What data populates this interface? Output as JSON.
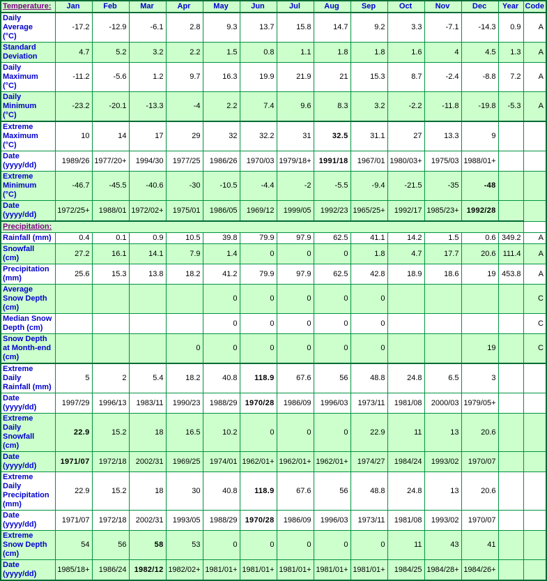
{
  "colors": {
    "cell_green": "#CCFFCC",
    "border_green": "#00913F",
    "border_dark_green": "#006B35",
    "label_blue": "#0000CC",
    "section_purple": "#800080",
    "value_black": "#000000"
  },
  "table": {
    "header": {
      "label": "Temperature:",
      "months": [
        "Jan",
        "Feb",
        "Mar",
        "Apr",
        "May",
        "Jun",
        "Jul",
        "Aug",
        "Sep",
        "Oct",
        "Nov",
        "Dec"
      ],
      "year": "Year",
      "code": "Code"
    },
    "rows": [
      {
        "kind": "data",
        "label": "Daily Average\n(°C)",
        "shade": false,
        "thick_top": false,
        "bold": [],
        "values": [
          "-17.2",
          "-12.9",
          "-6.1",
          "2.8",
          "9.3",
          "13.7",
          "15.8",
          "14.7",
          "9.2",
          "3.3",
          "-7.1",
          "-14.3"
        ],
        "year": "0.9",
        "code": "A"
      },
      {
        "kind": "data",
        "label": "Standard\nDeviation",
        "shade": true,
        "thick_top": false,
        "bold": [],
        "values": [
          "4.7",
          "5.2",
          "3.2",
          "2.2",
          "1.5",
          "0.8",
          "1.1",
          "1.8",
          "1.8",
          "1.6",
          "4",
          "4.5"
        ],
        "year": "1.3",
        "code": "A"
      },
      {
        "kind": "data",
        "label": "Daily\nMaximum\n(°C)",
        "shade": false,
        "thick_top": false,
        "bold": [],
        "values": [
          "-11.2",
          "-5.6",
          "1.2",
          "9.7",
          "16.3",
          "19.9",
          "21.9",
          "21",
          "15.3",
          "8.7",
          "-2.4",
          "-8.8"
        ],
        "year": "7.2",
        "code": "A"
      },
      {
        "kind": "data",
        "label": "Daily\nMinimum\n(°C)",
        "shade": true,
        "thick_top": false,
        "bold": [],
        "values": [
          "-23.2",
          "-20.1",
          "-13.3",
          "-4",
          "2.2",
          "7.4",
          "9.6",
          "8.3",
          "3.2",
          "-2.2",
          "-11.8",
          "-19.8"
        ],
        "year": "-5.3",
        "code": "A"
      },
      {
        "kind": "data",
        "label": "Extreme\nMaximum\n(°C)",
        "shade": false,
        "thick_top": true,
        "bold": [
          7
        ],
        "values": [
          "10",
          "14",
          "17",
          "29",
          "32",
          "32.2",
          "31",
          "32.5",
          "31.1",
          "27",
          "13.3",
          "9"
        ],
        "year": "",
        "code": ""
      },
      {
        "kind": "data",
        "label": "Date\n(yyyy/dd)",
        "shade": false,
        "thick_top": false,
        "bold": [
          7
        ],
        "values": [
          "1989/26",
          "1977/20+",
          "1994/30",
          "1977/25",
          "1986/26",
          "1970/03",
          "1979/18+",
          "1991/18",
          "1967/01",
          "1980/03+",
          "1975/03",
          "1988/01+"
        ],
        "year": "",
        "code": ""
      },
      {
        "kind": "data",
        "label": "Extreme\nMinimum\n(°C)",
        "shade": true,
        "thick_top": false,
        "bold": [
          11
        ],
        "values": [
          "-46.7",
          "-45.5",
          "-40.6",
          "-30",
          "-10.5",
          "-4.4",
          "-2",
          "-5.5",
          "-9.4",
          "-21.5",
          "-35",
          "-48"
        ],
        "year": "",
        "code": ""
      },
      {
        "kind": "data",
        "label": "Date\n(yyyy/dd)",
        "shade": true,
        "thick_top": false,
        "bold": [
          11
        ],
        "values": [
          "1972/25+",
          "1988/01",
          "1972/02+",
          "1975/01",
          "1986/05",
          "1969/12",
          "1999/05",
          "1992/23",
          "1965/25+",
          "1992/17",
          "1985/23+",
          "1992/28"
        ],
        "year": "",
        "code": ""
      },
      {
        "kind": "section",
        "label": "Precipitation:",
        "shade": true,
        "thick_top": true
      },
      {
        "kind": "data",
        "label": "Rainfall (mm)",
        "shade": false,
        "thick_top": false,
        "bold": [],
        "values": [
          "0.4",
          "0.1",
          "0.9",
          "10.5",
          "39.8",
          "79.9",
          "97.9",
          "62.5",
          "41.1",
          "14.2",
          "1.5",
          "0.6"
        ],
        "year": "349.2",
        "code": "A"
      },
      {
        "kind": "data",
        "label": "Snowfall\n(cm)",
        "shade": true,
        "thick_top": false,
        "bold": [],
        "values": [
          "27.2",
          "16.1",
          "14.1",
          "7.9",
          "1.4",
          "0",
          "0",
          "0",
          "1.8",
          "4.7",
          "17.7",
          "20.6"
        ],
        "year": "111.4",
        "code": "A"
      },
      {
        "kind": "data",
        "label": "Precipitation\n(mm)",
        "shade": false,
        "thick_top": false,
        "bold": [],
        "values": [
          "25.6",
          "15.3",
          "13.8",
          "18.2",
          "41.2",
          "79.9",
          "97.9",
          "62.5",
          "42.8",
          "18.9",
          "18.6",
          "19"
        ],
        "year": "453.8",
        "code": "A"
      },
      {
        "kind": "data",
        "label": "Average\nSnow Depth\n(cm)",
        "shade": true,
        "thick_top": false,
        "bold": [],
        "values": [
          "",
          "",
          "",
          "",
          "0",
          "0",
          "0",
          "0",
          "0",
          "",
          "",
          ""
        ],
        "year": "",
        "code": "C"
      },
      {
        "kind": "data",
        "label": "Median Snow\nDepth (cm)",
        "shade": false,
        "thick_top": false,
        "bold": [],
        "values": [
          "",
          "",
          "",
          "",
          "0",
          "0",
          "0",
          "0",
          "0",
          "",
          "",
          ""
        ],
        "year": "",
        "code": "C"
      },
      {
        "kind": "data",
        "label": "Snow Depth\nat Month-end\n(cm)",
        "shade": true,
        "thick_top": false,
        "bold": [],
        "values": [
          "",
          "",
          "",
          "0",
          "0",
          "0",
          "0",
          "0",
          "0",
          "",
          "",
          "19"
        ],
        "year": "",
        "code": "C"
      },
      {
        "kind": "data",
        "label": "Extreme Daily\nRainfall (mm)",
        "shade": false,
        "thick_top": true,
        "bold": [
          5
        ],
        "values": [
          "5",
          "2",
          "5.4",
          "18.2",
          "40.8",
          "118.9",
          "67.6",
          "56",
          "48.8",
          "24.8",
          "6.5",
          "3"
        ],
        "year": "",
        "code": ""
      },
      {
        "kind": "data",
        "label": "Date\n(yyyy/dd)",
        "shade": false,
        "thick_top": false,
        "bold": [
          5
        ],
        "values": [
          "1997/29",
          "1996/13",
          "1983/11",
          "1990/23",
          "1988/29",
          "1970/28",
          "1986/09",
          "1996/03",
          "1973/11",
          "1981/08",
          "2000/03",
          "1979/05+"
        ],
        "year": "",
        "code": ""
      },
      {
        "kind": "data",
        "label": "Extreme Daily\nSnowfall\n(cm)",
        "shade": true,
        "thick_top": false,
        "bold": [
          0
        ],
        "values": [
          "22.9",
          "15.2",
          "18",
          "16.5",
          "10.2",
          "0",
          "0",
          "0",
          "22.9",
          "11",
          "13",
          "20.6"
        ],
        "year": "",
        "code": ""
      },
      {
        "kind": "data",
        "label": "Date\n(yyyy/dd)",
        "shade": true,
        "thick_top": false,
        "bold": [
          0
        ],
        "values": [
          "1971/07",
          "1972/18",
          "2002/31",
          "1969/25",
          "1974/01",
          "1962/01+",
          "1962/01+",
          "1962/01+",
          "1974/27",
          "1984/24",
          "1993/02",
          "1970/07"
        ],
        "year": "",
        "code": ""
      },
      {
        "kind": "data",
        "label": "Extreme Daily\nPrecipitation\n(mm)",
        "shade": false,
        "thick_top": false,
        "bold": [
          5
        ],
        "values": [
          "22.9",
          "15.2",
          "18",
          "30",
          "40.8",
          "118.9",
          "67.6",
          "56",
          "48.8",
          "24.8",
          "13",
          "20.6"
        ],
        "year": "",
        "code": ""
      },
      {
        "kind": "data",
        "label": "Date\n(yyyy/dd)",
        "shade": false,
        "thick_top": false,
        "bold": [
          5
        ],
        "values": [
          "1971/07",
          "1972/18",
          "2002/31",
          "1993/05",
          "1988/29",
          "1970/28",
          "1986/09",
          "1996/03",
          "1973/11",
          "1981/08",
          "1993/02",
          "1970/07"
        ],
        "year": "",
        "code": ""
      },
      {
        "kind": "data",
        "label": "Extreme\nSnow Depth\n(cm)",
        "shade": true,
        "thick_top": false,
        "bold": [
          2
        ],
        "values": [
          "54",
          "56",
          "58",
          "53",
          "0",
          "0",
          "0",
          "0",
          "0",
          "11",
          "43",
          "41"
        ],
        "year": "",
        "code": ""
      },
      {
        "kind": "data",
        "label": "Date\n(yyyy/dd)",
        "shade": true,
        "thick_top": false,
        "bold": [
          2
        ],
        "values": [
          "1985/18+",
          "1986/24",
          "1982/12",
          "1982/02+",
          "1981/01+",
          "1981/01+",
          "1981/01+",
          "1981/01+",
          "1981/01+",
          "1984/25",
          "1984/28+",
          "1984/26+"
        ],
        "year": "",
        "code": ""
      }
    ]
  }
}
